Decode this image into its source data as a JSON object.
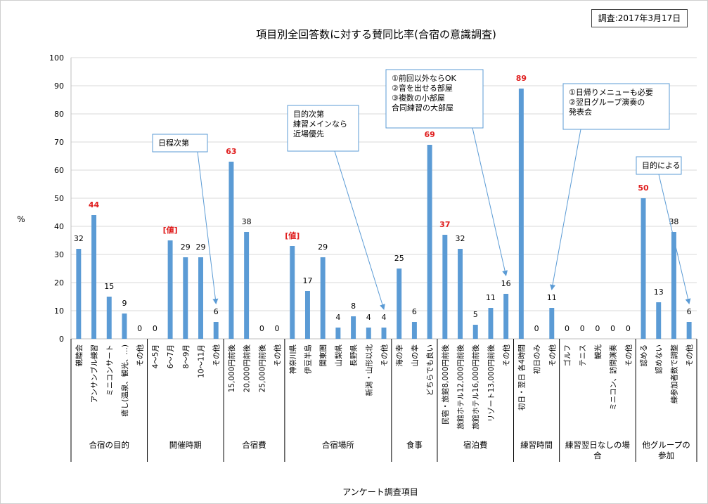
{
  "date_stamp": "調査:2017年3月17日",
  "chart_data": {
    "type": "bar",
    "title": "項目別全回答数に対する賛同比率(合宿の意識調査)",
    "ylabel": "%",
    "xlabel": "アンケート調査項目",
    "ylim": [
      0,
      100
    ],
    "yticks": [
      0,
      10,
      20,
      30,
      40,
      50,
      60,
      70,
      80,
      90,
      100
    ],
    "grid": true,
    "bar_color": "#5b9bd5",
    "highlight_color": "#e02020",
    "groups": [
      {
        "name": "合宿の目的",
        "items": [
          {
            "label": "親睦会",
            "value": 32,
            "data_label": "32"
          },
          {
            "label": "アンサンブル練習",
            "value": 44,
            "data_label": "44",
            "highlight": true
          },
          {
            "label": "ミニコンサート",
            "value": 15,
            "data_label": "15"
          },
          {
            "label": "癒し(温泉、観光、…)",
            "value": 9,
            "data_label": "9"
          },
          {
            "label": "その他",
            "value": 0,
            "data_label": "0"
          }
        ]
      },
      {
        "name": "開催時期",
        "items": [
          {
            "label": "4～5月",
            "value": 0,
            "data_label": "0"
          },
          {
            "label": "6～7月",
            "value": 35,
            "data_label": "[値]",
            "highlight": true
          },
          {
            "label": "8～9月",
            "value": 29,
            "data_label": "29"
          },
          {
            "label": "10～11月",
            "value": 29,
            "data_label": "29"
          },
          {
            "label": "その他",
            "value": 6,
            "data_label": "6"
          }
        ]
      },
      {
        "name": "合宿費",
        "items": [
          {
            "label": "15,000円前後",
            "value": 63,
            "data_label": "63",
            "highlight": true
          },
          {
            "label": "20,000円前後",
            "value": 38,
            "data_label": "38"
          },
          {
            "label": "25,000円前後",
            "value": 0,
            "data_label": "0"
          },
          {
            "label": "その他",
            "value": 0,
            "data_label": "0"
          }
        ]
      },
      {
        "name": "合宿場所",
        "items": [
          {
            "label": "神奈川県",
            "value": 33,
            "data_label": "[値]",
            "highlight": true
          },
          {
            "label": "伊豆半島",
            "value": 17,
            "data_label": "17"
          },
          {
            "label": "関東圏",
            "value": 29,
            "data_label": "29"
          },
          {
            "label": "山梨県",
            "value": 4,
            "data_label": "4"
          },
          {
            "label": "長野県",
            "value": 8,
            "data_label": "8"
          },
          {
            "label": "新潟・山形以北",
            "value": 4,
            "data_label": "4"
          },
          {
            "label": "その他",
            "value": 4,
            "data_label": "4"
          }
        ]
      },
      {
        "name": "食事",
        "items": [
          {
            "label": "海の幸",
            "value": 25,
            "data_label": "25"
          },
          {
            "label": "山の幸",
            "value": 6,
            "data_label": "6"
          },
          {
            "label": "どちらでも良い",
            "value": 69,
            "data_label": "69",
            "highlight": true
          }
        ]
      },
      {
        "name": "宿泊費",
        "items": [
          {
            "label": "民宿・旅館8,000円前後",
            "value": 37,
            "data_label": "37",
            "highlight": true
          },
          {
            "label": "旅館ホテル12,000円前後",
            "value": 32,
            "data_label": "32"
          },
          {
            "label": "旅館ホテル16,000円前後",
            "value": 5,
            "data_label": "5"
          },
          {
            "label": "リゾート13,000円前後",
            "value": 11,
            "data_label": "11"
          },
          {
            "label": "その他",
            "value": 16,
            "data_label": "16"
          }
        ]
      },
      {
        "name": "練習時間",
        "items": [
          {
            "label": "初日・翌日 各4時間",
            "value": 89,
            "data_label": "89",
            "highlight": true
          },
          {
            "label": "初日のみ",
            "value": 0,
            "data_label": "0"
          },
          {
            "label": "その他",
            "value": 11,
            "data_label": "11"
          }
        ]
      },
      {
        "name": "練習翌日なしの場合",
        "items": [
          {
            "label": "ゴルフ",
            "value": 0,
            "data_label": "0"
          },
          {
            "label": "テニス",
            "value": 0,
            "data_label": "0"
          },
          {
            "label": "観光",
            "value": 0,
            "data_label": "0"
          },
          {
            "label": "ミニコン、訪問演奏",
            "value": 0,
            "data_label": "0"
          },
          {
            "label": "その他",
            "value": 0,
            "data_label": "0"
          }
        ]
      },
      {
        "name": "他グループの参加",
        "items": [
          {
            "label": "認める",
            "value": 50,
            "data_label": "50",
            "highlight": true
          },
          {
            "label": "認めない",
            "value": 13,
            "data_label": "13"
          },
          {
            "label": "練参加者数で調整",
            "value": 38,
            "data_label": "38"
          },
          {
            "label": "その他",
            "value": 6,
            "data_label": "6"
          }
        ]
      }
    ],
    "annotations": [
      {
        "lines": [
          "日程次第"
        ],
        "target": "開催時期/その他"
      },
      {
        "lines": [
          "目的次第",
          "練習メインなら",
          "近場優先"
        ],
        "target": "合宿場所/その他"
      },
      {
        "lines": [
          "①前回以外ならOK",
          "②音を出せる部屋",
          "③複数の小部屋",
          "  合同練習の大部屋"
        ],
        "target": "宿泊費/その他"
      },
      {
        "lines": [
          "①日帰りメニューも必要",
          "②翌日グループ演奏の",
          "  発表会"
        ],
        "target": "練習時間/その他"
      },
      {
        "lines": [
          "目的による"
        ],
        "target": "他グループの参加/その他"
      }
    ]
  }
}
